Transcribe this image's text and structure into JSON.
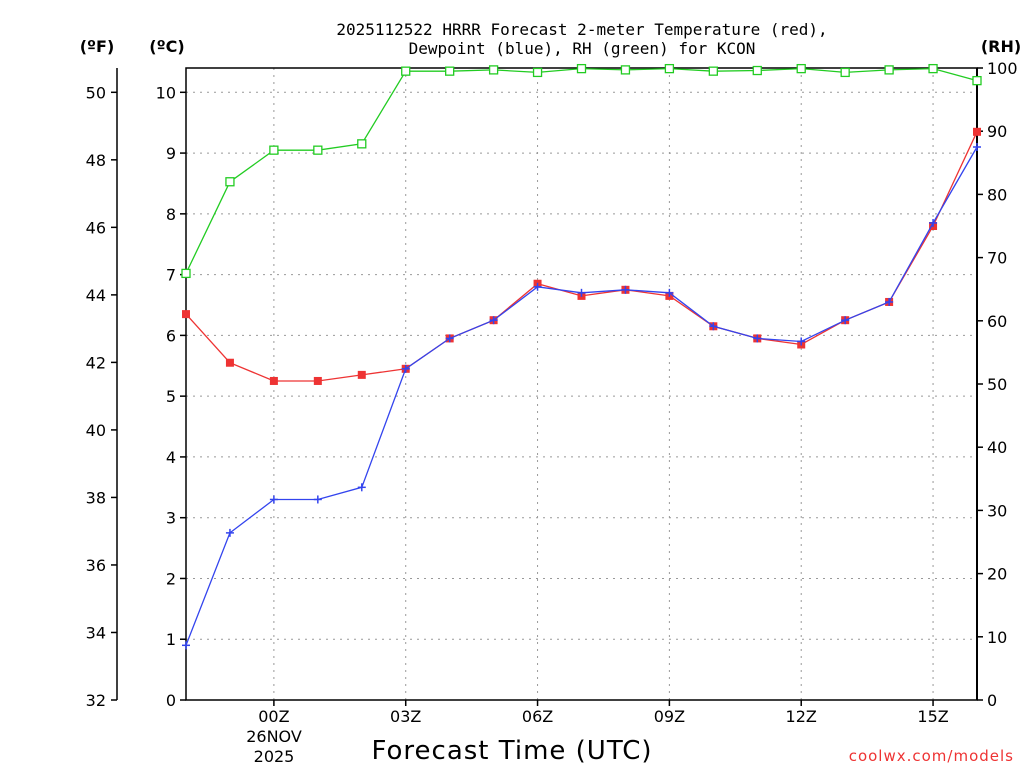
{
  "chart_data": {
    "type": "line",
    "title_line1": "2025112522 HRRR Forecast 2-meter Temperature (red),",
    "title_line2": "Dewpoint (blue), RH (green) for KCON",
    "xlabel": "Forecast Time (UTC)",
    "credit": "coolwx.com/models",
    "date_label": [
      "26NOV",
      "2025"
    ],
    "units": {
      "fahrenheit": "(ºF)",
      "celsius": "(ºC)",
      "rh": "(RH)"
    },
    "x_hours": [
      -2,
      -1,
      0,
      1,
      2,
      3,
      4,
      5,
      6,
      7,
      8,
      9,
      10,
      11,
      12,
      13,
      14,
      15,
      16
    ],
    "x_ticks": [
      {
        "hour": 0,
        "label": "00Z"
      },
      {
        "hour": 3,
        "label": "03Z"
      },
      {
        "hour": 6,
        "label": "06Z"
      },
      {
        "hour": 9,
        "label": "09Z"
      },
      {
        "hour": 12,
        "label": "12Z"
      },
      {
        "hour": 15,
        "label": "15Z"
      }
    ],
    "xlim": [
      -2,
      16
    ],
    "celsius_axis": {
      "ylim": [
        0,
        10.4
      ],
      "ticks": [
        0,
        1,
        2,
        3,
        4,
        5,
        6,
        7,
        8,
        9,
        10
      ]
    },
    "fahrenheit_axis": {
      "ticks": [
        32,
        34,
        36,
        38,
        40,
        42,
        44,
        46,
        48,
        50
      ]
    },
    "rh_axis": {
      "ylim": [
        0,
        100
      ],
      "ticks": [
        0,
        10,
        20,
        30,
        40,
        50,
        60,
        70,
        80,
        90,
        100
      ]
    },
    "series": [
      {
        "name": "Temperature",
        "axis": "celsius",
        "color": "#ee3333",
        "marker": "filled-square",
        "values": [
          6.35,
          5.55,
          5.25,
          5.25,
          5.35,
          5.45,
          5.95,
          6.25,
          6.85,
          6.65,
          6.75,
          6.65,
          6.15,
          5.95,
          5.85,
          6.25,
          6.55,
          7.8,
          9.35
        ]
      },
      {
        "name": "Dewpoint",
        "axis": "celsius",
        "color": "#3344ee",
        "marker": "plus",
        "values": [
          0.9,
          2.75,
          3.3,
          3.3,
          3.5,
          5.45,
          5.95,
          6.25,
          6.8,
          6.7,
          6.75,
          6.7,
          6.15,
          5.95,
          5.9,
          6.25,
          6.55,
          7.85,
          9.1
        ]
      },
      {
        "name": "RH",
        "axis": "rh",
        "color": "#22cc22",
        "marker": "open-square",
        "values": [
          67.5,
          82,
          87,
          87,
          88,
          99.5,
          99.5,
          99.7,
          99.3,
          99.9,
          99.7,
          99.9,
          99.5,
          99.6,
          99.9,
          99.3,
          99.7,
          99.9,
          98
        ]
      }
    ]
  }
}
